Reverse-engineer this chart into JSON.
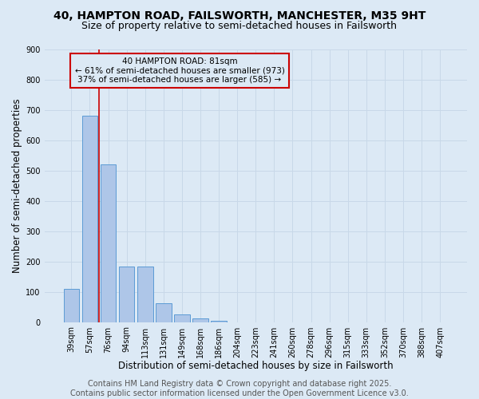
{
  "title_line1": "40, HAMPTON ROAD, FAILSWORTH, MANCHESTER, M35 9HT",
  "title_line2": "Size of property relative to semi-detached houses in Failsworth",
  "xlabel": "Distribution of semi-detached houses by size in Failsworth",
  "ylabel": "Number of semi-detached properties",
  "categories": [
    "39sqm",
    "57sqm",
    "76sqm",
    "94sqm",
    "113sqm",
    "131sqm",
    "149sqm",
    "168sqm",
    "186sqm",
    "204sqm",
    "223sqm",
    "241sqm",
    "260sqm",
    "278sqm",
    "296sqm",
    "315sqm",
    "333sqm",
    "352sqm",
    "370sqm",
    "388sqm",
    "407sqm"
  ],
  "values": [
    110,
    680,
    520,
    182,
    182,
    63,
    25,
    12,
    5,
    0,
    0,
    0,
    0,
    0,
    0,
    0,
    0,
    0,
    0,
    0,
    0
  ],
  "bar_color": "#aec6e8",
  "bar_edge_color": "#5b9bd5",
  "grid_color": "#c8d8e8",
  "bg_color": "#dce9f5",
  "annotation_box_text": "40 HAMPTON ROAD: 81sqm\n← 61% of semi-detached houses are smaller (973)\n37% of semi-detached houses are larger (585) →",
  "annotation_box_color": "#cc0000",
  "vline_x": 1.5,
  "vline_color": "#cc0000",
  "ylim": [
    0,
    900
  ],
  "yticks": [
    0,
    100,
    200,
    300,
    400,
    500,
    600,
    700,
    800,
    900
  ],
  "footer_line1": "Contains HM Land Registry data © Crown copyright and database right 2025.",
  "footer_line2": "Contains public sector information licensed under the Open Government Licence v3.0.",
  "footer_fontsize": 7,
  "title1_fontsize": 10,
  "title2_fontsize": 9,
  "xlabel_fontsize": 8.5,
  "ylabel_fontsize": 8.5,
  "tick_fontsize": 7,
  "annotation_fontsize": 7.5
}
